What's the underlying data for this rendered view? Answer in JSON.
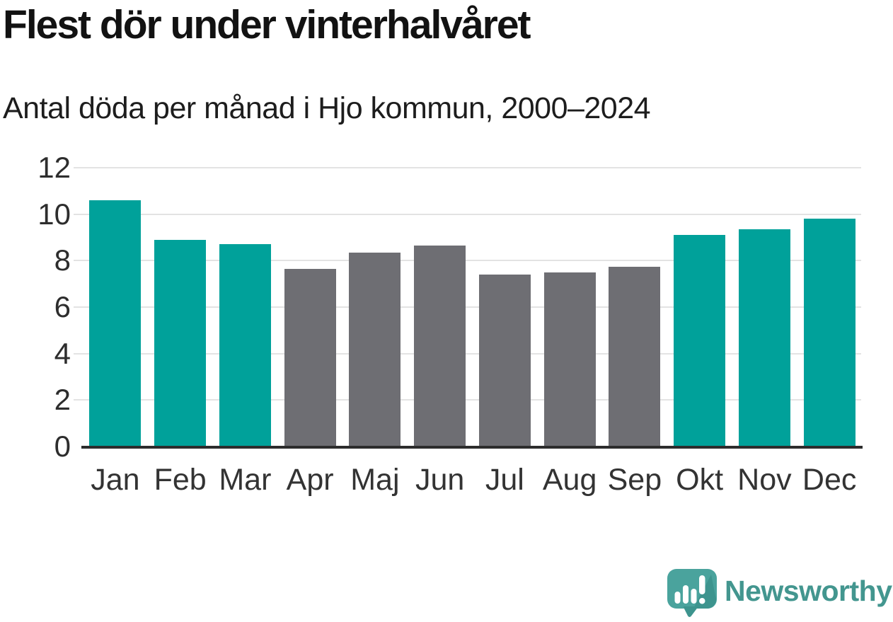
{
  "chart": {
    "title": "Flest dör under vinterhalvåret",
    "subtitle": "Antal döda per månad i Hjo kommun, 2000–2024"
  },
  "chart_data": {
    "type": "bar",
    "title": "Flest dör under vinterhalvåret",
    "subtitle": "Antal döda per månad i Hjo kommun, 2000–2024",
    "categories": [
      "Jan",
      "Feb",
      "Mar",
      "Apr",
      "Maj",
      "Jun",
      "Jul",
      "Aug",
      "Sep",
      "Okt",
      "Nov",
      "Dec"
    ],
    "values": [
      10.6,
      8.9,
      8.7,
      7.65,
      8.35,
      8.65,
      7.4,
      7.5,
      7.75,
      9.1,
      9.35,
      9.8
    ],
    "bar_colors": [
      "teal",
      "teal",
      "teal",
      "gray",
      "gray",
      "gray",
      "gray",
      "gray",
      "gray",
      "teal",
      "teal",
      "teal"
    ],
    "colors": {
      "teal": "#00a19a",
      "gray": "#6e6e73"
    },
    "xlabel": "",
    "ylabel": "",
    "ylim": [
      0,
      12
    ],
    "yticks": [
      0,
      2,
      4,
      6,
      8,
      10,
      12
    ],
    "grid": "horizontal",
    "legend": "none"
  },
  "branding": {
    "logo_text": "Newsworthy",
    "logo_icon": "speech-bubble-bar-chart-icon",
    "logo_color": "#43968f",
    "logo_mark_color": "#4aa39d",
    "logo_mark_shade_color": "#3d948e"
  }
}
